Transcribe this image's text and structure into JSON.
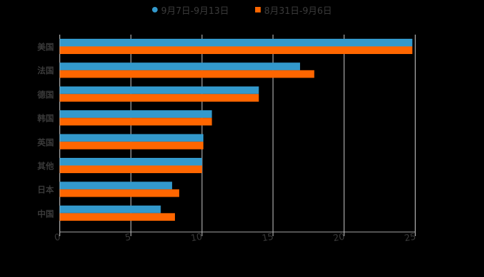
{
  "legend": [
    {
      "label": "9月7日-9月13日",
      "color": "#3399cc",
      "shape": "circle"
    },
    {
      "label": "8月31日-9月6日",
      "color": "#ff6600",
      "shape": "square"
    }
  ],
  "chart_data": {
    "type": "bar",
    "orientation": "horizontal",
    "title": "",
    "xlabel": "",
    "ylabel": "",
    "categories": [
      "美国",
      "法国",
      "德国",
      "韩国",
      "英国",
      "其他",
      "日本",
      "中国"
    ],
    "series": [
      {
        "name": "9月7日-9月13日",
        "color": "#3399cc",
        "values": [
          24.8,
          16.9,
          14.0,
          10.7,
          10.1,
          10.0,
          7.9,
          7.1
        ]
      },
      {
        "name": "8月31日-9月6日",
        "color": "#ff6600",
        "values": [
          24.8,
          17.9,
          14.0,
          10.7,
          10.1,
          10.0,
          8.4,
          8.1
        ]
      }
    ],
    "xlim": [
      0,
      25
    ],
    "xticks": [
      "0",
      "5",
      "10",
      "15",
      "20",
      "25"
    ],
    "grid": true,
    "legend_position": "top"
  }
}
